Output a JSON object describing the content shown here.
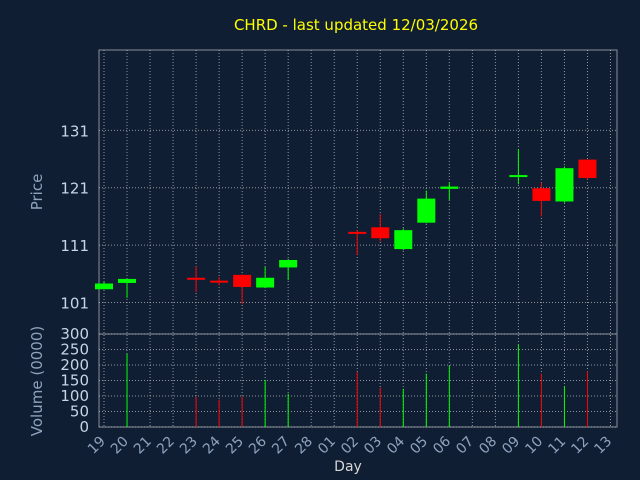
{
  "chart_data": [
    {
      "type": "candlestick",
      "title": "CHRD - last updated 12/03/2026",
      "ylabel": "Price",
      "ylim": [
        95.5,
        145
      ],
      "yticks": [
        101,
        111,
        121,
        131
      ],
      "grid": true,
      "colors": {
        "up": "#00ff00",
        "down": "#ff0000"
      },
      "categories": [
        "19",
        "20",
        "21",
        "22",
        "23",
        "24",
        "25",
        "26",
        "27",
        "28",
        "01",
        "02",
        "03",
        "04",
        "05",
        "06",
        "07",
        "08",
        "09",
        "10",
        "11",
        "12",
        "13"
      ],
      "candles": [
        {
          "day": "19",
          "open": 103.3,
          "high": 104.6,
          "low": 103.3,
          "close": 104.3
        },
        {
          "day": "20",
          "open": 104.4,
          "high": 105.1,
          "low": 101.8,
          "close": 105.1
        },
        {
          "day": "23",
          "open": 105.3,
          "high": 107.3,
          "low": 102.8,
          "close": 105.1
        },
        {
          "day": "24",
          "open": 104.8,
          "high": 105.4,
          "low": 104.0,
          "close": 104.5
        },
        {
          "day": "25",
          "open": 105.8,
          "high": 105.9,
          "low": 100.7,
          "close": 103.7
        },
        {
          "day": "26",
          "open": 103.6,
          "high": 107.2,
          "low": 103.5,
          "close": 105.3
        },
        {
          "day": "27",
          "open": 107.1,
          "high": 108.6,
          "low": 104.9,
          "close": 108.4
        },
        {
          "day": "02",
          "open": 113.3,
          "high": 113.6,
          "low": 109.3,
          "close": 113.2
        },
        {
          "day": "03",
          "open": 114.1,
          "high": 116.4,
          "low": 111.6,
          "close": 112.2
        },
        {
          "day": "04",
          "open": 110.3,
          "high": 113.9,
          "low": 110.1,
          "close": 113.6
        },
        {
          "day": "05",
          "open": 114.9,
          "high": 120.5,
          "low": 114.8,
          "close": 119.1
        },
        {
          "day": "06",
          "open": 120.8,
          "high": 121.9,
          "low": 118.8,
          "close": 121.2
        },
        {
          "day": "09",
          "open": 122.9,
          "high": 127.7,
          "low": 121.6,
          "close": 123.2
        },
        {
          "day": "10",
          "open": 120.9,
          "high": 121.9,
          "low": 116.0,
          "close": 118.7
        },
        {
          "day": "11",
          "open": 118.6,
          "high": 124.7,
          "low": 118.4,
          "close": 124.4
        },
        {
          "day": "12",
          "open": 125.9,
          "high": 125.9,
          "low": 122.4,
          "close": 122.7
        }
      ]
    },
    {
      "type": "bar",
      "ylabel": "Volume (0000)",
      "xlabel": "Day",
      "ylim": [
        0,
        300
      ],
      "yticks": [
        0,
        50,
        100,
        150,
        200,
        250,
        300
      ],
      "grid": true,
      "categories": [
        "19",
        "20",
        "21",
        "22",
        "23",
        "24",
        "25",
        "26",
        "27",
        "28",
        "01",
        "02",
        "03",
        "04",
        "05",
        "06",
        "07",
        "08",
        "09",
        "10",
        "11",
        "12",
        "13"
      ],
      "bars": [
        {
          "day": "19",
          "value": 0,
          "color": "#00ff00"
        },
        {
          "day": "20",
          "value": 237,
          "color": "#00ff00"
        },
        {
          "day": "23",
          "value": 97,
          "color": "#ff0000"
        },
        {
          "day": "24",
          "value": 88,
          "color": "#ff0000"
        },
        {
          "day": "25",
          "value": 98,
          "color": "#ff0000"
        },
        {
          "day": "26",
          "value": 152,
          "color": "#00ff00"
        },
        {
          "day": "27",
          "value": 107,
          "color": "#00ff00"
        },
        {
          "day": "02",
          "value": 177,
          "color": "#ff0000"
        },
        {
          "day": "03",
          "value": 127,
          "color": "#ff0000"
        },
        {
          "day": "04",
          "value": 123,
          "color": "#00ff00"
        },
        {
          "day": "05",
          "value": 172,
          "color": "#00ff00"
        },
        {
          "day": "06",
          "value": 197,
          "color": "#00ff00"
        },
        {
          "day": "09",
          "value": 265,
          "color": "#00ff00"
        },
        {
          "day": "10",
          "value": 172,
          "color": "#ff0000"
        },
        {
          "day": "11",
          "value": 132,
          "color": "#00ff00"
        },
        {
          "day": "12",
          "value": 180,
          "color": "#ff0000"
        }
      ]
    }
  ]
}
